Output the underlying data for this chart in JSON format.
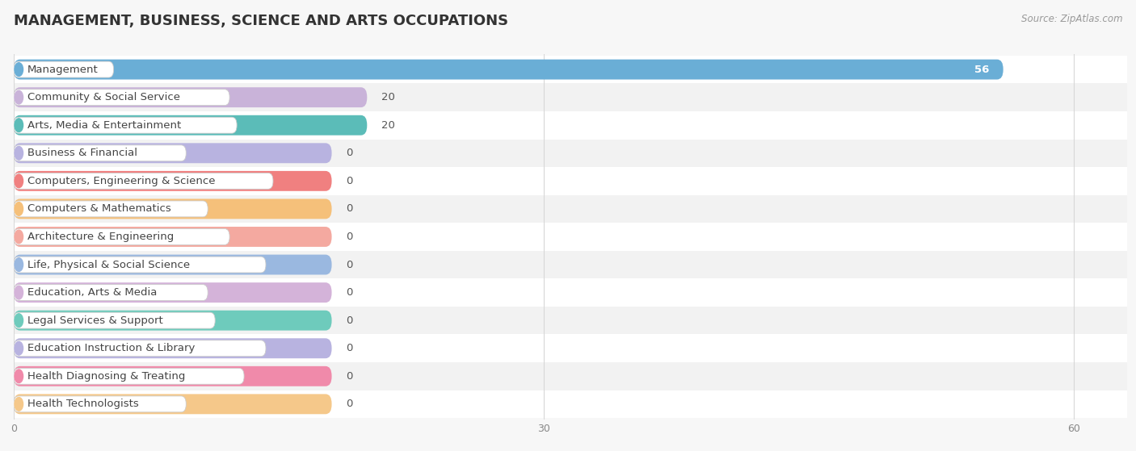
{
  "title": "MANAGEMENT, BUSINESS, SCIENCE AND ARTS OCCUPATIONS",
  "source": "Source: ZipAtlas.com",
  "categories": [
    "Management",
    "Community & Social Service",
    "Arts, Media & Entertainment",
    "Business & Financial",
    "Computers, Engineering & Science",
    "Computers & Mathematics",
    "Architecture & Engineering",
    "Life, Physical & Social Science",
    "Education, Arts & Media",
    "Legal Services & Support",
    "Education Instruction & Library",
    "Health Diagnosing & Treating",
    "Health Technologists"
  ],
  "values": [
    56,
    20,
    20,
    0,
    0,
    0,
    0,
    0,
    0,
    0,
    0,
    0,
    0
  ],
  "bar_colors": [
    "#6aaed6",
    "#c9b3d9",
    "#5bbcb8",
    "#b8b3e0",
    "#f08080",
    "#f5c07a",
    "#f4a9a0",
    "#9ab8e0",
    "#d4b3d9",
    "#6ecbbc",
    "#b8b3e0",
    "#f08aaa",
    "#f5c88a"
  ],
  "xlim": [
    0,
    63
  ],
  "xticks": [
    0,
    30,
    60
  ],
  "background_color": "#f7f7f7",
  "row_colors": [
    "#ffffff",
    "#f2f2f2"
  ],
  "grid_color": "#d8d8d8",
  "title_fontsize": 13,
  "label_fontsize": 9.5,
  "zero_bar_width": 18
}
